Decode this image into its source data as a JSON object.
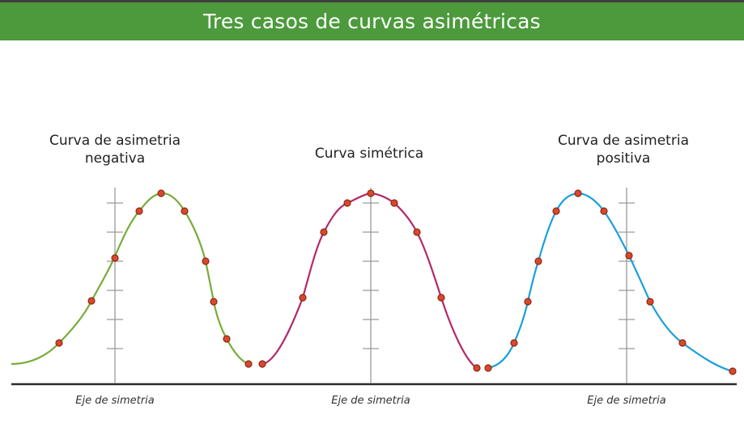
{
  "header": {
    "title": "Tres casos de curvas asimétricas"
  },
  "curves": [
    {
      "id": "negative",
      "title_line1": "Curva de asimetria",
      "title_line2": "negativa",
      "color": "#7aab3a",
      "axis_label": "Eje de simetria"
    },
    {
      "id": "symmetric",
      "title_line1": "Curva simétrica",
      "title_line2": "",
      "color": "#b3286b",
      "axis_label": "Eje de simetria"
    },
    {
      "id": "positive",
      "title_line1": "Curva de asimetria",
      "title_line2": "positiva",
      "color": "#1aa0d8",
      "axis_label": "Eje de simetria"
    }
  ],
  "colors": {
    "banner": "#4c9a3c",
    "point_fill": "#d9482b",
    "point_stroke": "#8a2a14",
    "axis": "#2b2b2b"
  }
}
